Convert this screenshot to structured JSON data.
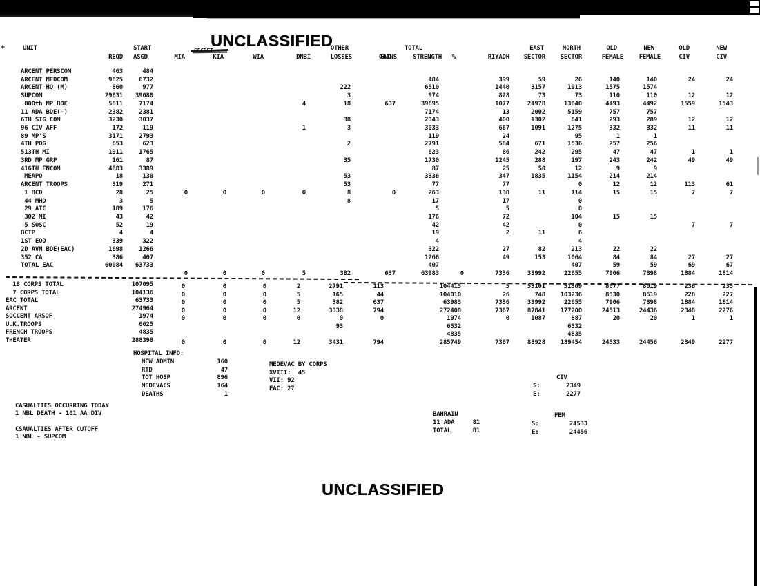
{
  "classification": {
    "top": "UNCLASSIFIED",
    "bottom": "UNCLASSIFIED",
    "struck": "SECRET"
  },
  "page_marks": {
    "plus": "+"
  },
  "table": {
    "headers": {
      "unit": "UNIT",
      "reqd": "REQD",
      "start1": "START",
      "start2": "ASGD",
      "mia": "MIA",
      "kia": "KIA",
      "wia": "WIA",
      "dnbi": "DNBI",
      "other1": "OTHER",
      "other2": "LOSSES",
      "gains": "GAINS",
      "end": "END",
      "total1": "TOTAL",
      "total2": "STRENGTH",
      "pct": "%",
      "riyadh": "RIYADH",
      "east1": "EAST",
      "east2": "SECTOR",
      "north1": "NORTH",
      "north2": "SECTOR",
      "oldfem1": "OLD",
      "oldfem2": "FEMALE",
      "newfem1": "NEW",
      "newfem2": "FEMALE",
      "oldciv1": "OLD",
      "oldciv2": "CIV",
      "newciv1": "NEW",
      "newciv2": "CIV"
    },
    "eac_rows": [
      {
        "unit": "ARCENT PERSCOM",
        "reqd": "463",
        "asgd": "484"
      },
      {
        "unit": "ARCENT MEDCOM",
        "reqd": "9825",
        "asgd": "6732"
      },
      {
        "unit": "ARCENT HQ (M)",
        "reqd": "860",
        "asgd": "977"
      },
      {
        "unit": "SUPCOM",
        "reqd": "29631",
        "asgd": "39080"
      },
      {
        "unit": " 800th MP BDE",
        "reqd": "5811",
        "asgd": "7174"
      },
      {
        "unit": "11 ADA BDE(-)",
        "reqd": "2382",
        "asgd": "2381"
      },
      {
        "unit": "6TH SIG COM",
        "reqd": "3230",
        "asgd": "3037"
      },
      {
        "unit": "96 CIV AFF",
        "reqd": "172",
        "asgd": "119"
      },
      {
        "unit": "89 MP'S",
        "reqd": "3171",
        "asgd": "2793"
      },
      {
        "unit": "4TH POG",
        "reqd": "653",
        "asgd": "623"
      },
      {
        "unit": "513TH MI",
        "reqd": "1911",
        "asgd": "1765"
      },
      {
        "unit": "3RD MP GRP",
        "reqd": "161",
        "asgd": "87"
      },
      {
        "unit": "416TH ENCOM",
        "reqd": "4883",
        "asgd": "3389"
      },
      {
        "unit": " MEAPO",
        "reqd": "18",
        "asgd": "130"
      },
      {
        "unit": "ARCENT TROOPS",
        "reqd": "319",
        "asgd": "271"
      },
      {
        "unit": " 1 BCD",
        "reqd": "28",
        "asgd": "25"
      },
      {
        "unit": " 44 MHD",
        "reqd": "3",
        "asgd": "5"
      },
      {
        "unit": " 29 ATC",
        "reqd": "189",
        "asgd": "176"
      },
      {
        "unit": " 302 MI",
        "reqd": "43",
        "asgd": "42"
      },
      {
        "unit": " 5 SOSC",
        "reqd": "52",
        "asgd": "19"
      },
      {
        "unit": "BCTP",
        "reqd": "4",
        "asgd": "4"
      },
      {
        "unit": "1ST EOD",
        "reqd": "339",
        "asgd": "322"
      },
      {
        "unit": "2D AVN BDE(EAC)",
        "reqd": "1698",
        "asgd": "1266"
      },
      {
        "unit": "352 CA",
        "reqd": "386",
        "asgd": "407"
      },
      {
        "unit": "TOTAL EAC",
        "reqd": "60084",
        "asgd": "63733"
      }
    ],
    "eac_value_lines": [
      {
        "end": "484",
        "riyadh": "399",
        "east": "59",
        "north": "26",
        "oldfem": "140",
        "newfem": "140",
        "oldciv": "24",
        "newciv": "24"
      },
      {
        "other": "222",
        "end": "6510",
        "riyadh": "1440",
        "east": "3157",
        "north": "1913",
        "oldfem": "1575",
        "newfem": "1574"
      },
      {
        "other": "3",
        "end": "974",
        "riyadh": "828",
        "east": "73",
        "north": "73",
        "oldfem": "110",
        "newfem": "110",
        "oldciv": "12",
        "newciv": "12"
      },
      {
        "dnbi": "4",
        "other": "18",
        "gains": "637",
        "end": "39695",
        "riyadh": "1077",
        "east": "24978",
        "north": "13640",
        "oldfem": "4493",
        "newfem": "4492",
        "oldciv": "1559",
        "newciv": "1543"
      },
      {
        "end": "7174",
        "riyadh": "13",
        "east": "2002",
        "north": "5159",
        "oldfem": "757",
        "newfem": "757"
      },
      {
        "other": "38",
        "end": "2343",
        "riyadh": "400",
        "east": "1302",
        "north": "641",
        "oldfem": "293",
        "newfem": "289",
        "oldciv": "12",
        "newciv": "12"
      },
      {
        "dnbi": "1",
        "other": "3",
        "end": "3033",
        "riyadh": "667",
        "east": "1091",
        "north": "1275",
        "oldfem": "332",
        "newfem": "332",
        "oldciv": "11",
        "newciv": "11"
      },
      {
        "end": "119",
        "riyadh": "24",
        "north": "95",
        "oldfem": "1",
        "newfem": "1"
      },
      {
        "other": "2",
        "end": "2791",
        "riyadh": "584",
        "east": "671",
        "north": "1536",
        "oldfem": "257",
        "newfem": "256"
      },
      {
        "end": "623",
        "riyadh": "86",
        "east": "242",
        "north": "295",
        "oldfem": "47",
        "newfem": "47",
        "oldciv": "1",
        "newciv": "1"
      },
      {
        "other": "35",
        "end": "1730",
        "riyadh": "1245",
        "east": "288",
        "north": "197",
        "oldfem": "243",
        "newfem": "242",
        "oldciv": "49",
        "newciv": "49"
      },
      {
        "end": "87",
        "riyadh": "25",
        "east": "50",
        "north": "12",
        "oldfem": "9",
        "newfem": "9"
      },
      {
        "other": "53",
        "end": "3336",
        "riyadh": "347",
        "east": "1835",
        "north": "1154",
        "oldfem": "214",
        "newfem": "214"
      },
      {
        "other": "53",
        "end": "77",
        "riyadh": "77",
        "north": "0",
        "oldfem": "12",
        "newfem": "12",
        "oldciv": "113",
        "newciv": "61"
      },
      {
        "mia": "0",
        "kia": "0",
        "wia": "0",
        "dnbi": "0",
        "other": "8",
        "gains": "0",
        "end": "263",
        "riyadh": "138",
        "east": "11",
        "north": "114",
        "oldfem": "15",
        "newfem": "15",
        "oldciv": "7",
        "newciv": "7"
      },
      {
        "other": "8",
        "end": "17",
        "riyadh": "17",
        "north": "0"
      },
      {
        "end": "5",
        "riyadh": "5",
        "north": "0"
      },
      {
        "end": "176",
        "riyadh": "72",
        "north": "104",
        "oldfem": "15",
        "newfem": "15"
      },
      {
        "end": "42",
        "riyadh": "42",
        "north": "0",
        "oldciv": "7",
        "newciv": "7"
      },
      {
        "end": "19",
        "riyadh": "2",
        "east": "11",
        "north": "6"
      },
      {
        "end": "4",
        "north": "4"
      },
      {
        "end": "322",
        "riyadh": "27",
        "east": "82",
        "north": "213",
        "oldfem": "22",
        "newfem": "22"
      },
      {
        "end": "1266",
        "riyadh": "49",
        "east": "153",
        "north": "1064",
        "oldfem": "84",
        "newfem": "84",
        "oldciv": "27",
        "newciv": "27"
      },
      {
        "end": "407",
        "north": "407",
        "oldfem": "59",
        "newfem": "59",
        "oldciv": "69",
        "newciv": "67"
      },
      {
        "mia": "0",
        "kia": "0",
        "wia": "0",
        "dnbi": "5",
        "other": "382",
        "gains": "637",
        "end": "63983",
        "pct": "0",
        "riyadh": "7336",
        "east": "33992",
        "north": "22655",
        "oldfem": "7906",
        "newfem": "7898",
        "oldciv": "1884",
        "newciv": "1814"
      }
    ],
    "summary_rows": [
      {
        "unit": "  18 CORPS TOTAL",
        "asgd": "107095",
        "mia": "0",
        "kia": "0",
        "wia": "0",
        "dnbi": "2",
        "other": "2791",
        "gains": "113",
        "end": "104415",
        "riyadh": "5",
        "east": "53101",
        "north": "51309",
        "oldfem": "8077",
        "newfem": "8019",
        "oldciv": "236",
        "newciv": "235"
      },
      {
        "unit": "  7 CORPS TOTAL",
        "asgd": "104136",
        "mia": "0",
        "kia": "0",
        "wia": "0",
        "dnbi": "5",
        "other": "165",
        "gains": "44",
        "end": "104010",
        "riyadh": "26",
        "east": "748",
        "north": "103236",
        "oldfem": "8530",
        "newfem": "8519",
        "oldciv": "228",
        "newciv": "227"
      },
      {
        "unit": "EAC TOTAL",
        "asgd": "63733",
        "mia": "0",
        "kia": "0",
        "wia": "0",
        "dnbi": "5",
        "other": "382",
        "gains": "637",
        "end": "63983",
        "riyadh": "7336",
        "east": "33992",
        "north": "22655",
        "oldfem": "7906",
        "newfem": "7898",
        "oldciv": "1884",
        "newciv": "1814"
      },
      {
        "unit": "ARCENT",
        "asgd": "274964",
        "mia": "0",
        "kia": "0",
        "wia": "0",
        "dnbi": "12",
        "other": "3338",
        "gains": "794",
        "end": "272408",
        "riyadh": "7367",
        "east": "87841",
        "north": "177200",
        "oldfem": "24513",
        "newfem": "24436",
        "oldciv": "2348",
        "newciv": "2276"
      },
      {
        "unit": "SOCCENT ARSOF",
        "asgd": "1974",
        "mia": "0",
        "kia": "0",
        "wia": "0",
        "dnbi": "0",
        "other": "0",
        "gains": "0",
        "end": "1974",
        "riyadh": "0",
        "east": "1087",
        "north": "887",
        "oldfem": "20",
        "newfem": "20",
        "oldciv": "1",
        "newciv": "1"
      },
      {
        "unit": "U.K.TROOPS",
        "asgd": "6625",
        "other": "93",
        "end": "6532",
        "north": "6532"
      },
      {
        "unit": "FRENCH TROOPS",
        "asgd": "4835",
        "end": "4835",
        "north": "4835"
      },
      {
        "unit": "THEATER",
        "asgd": "288398",
        "mia": "0",
        "kia": "0",
        "wia": "0",
        "dnbi": "12",
        "other": "3431",
        "gains": "794",
        "end": "285749",
        "riyadh": "7367",
        "east": "88928",
        "north": "189454",
        "oldfem": "24533",
        "newfem": "24456",
        "oldciv": "2349",
        "newciv": "2277"
      }
    ]
  },
  "hospital": {
    "title": "HOSPITAL INFO:",
    "items": [
      [
        "NEW ADMIN",
        "160"
      ],
      [
        "RTD",
        "47"
      ],
      [
        "TOT HOSP",
        "896"
      ],
      [
        "MEDEVACS",
        "164"
      ],
      [
        "DEATHS",
        "1"
      ]
    ]
  },
  "medevac": {
    "title": "MEDEVAC BY CORPS",
    "l1": "XVIII:  45",
    "l2": "VII: 92",
    "l3": "EAC: 27"
  },
  "civ": {
    "title": "CIV",
    "s_label": "S:",
    "s_value": "2349",
    "e_label": "E:",
    "e_value": "2277"
  },
  "fem": {
    "title": "FEM",
    "s_label": "S:",
    "s_value": "24533",
    "e_label": "E:",
    "e_value": "24456"
  },
  "bahrain": {
    "title": "BAHRAIN",
    "row1_label": "11 ADA",
    "row1_value": "81",
    "row2_label": "TOTAL",
    "row2_value": "81"
  },
  "casualties": {
    "line1": "CASUALTIES OCCURRING TODAY",
    "line2": "1 NBL DEATH - 101 AA DIV",
    "line3": "CSAUALTIES AFTER CUTOFF",
    "line4": "1 NBL - SUPCOM"
  }
}
